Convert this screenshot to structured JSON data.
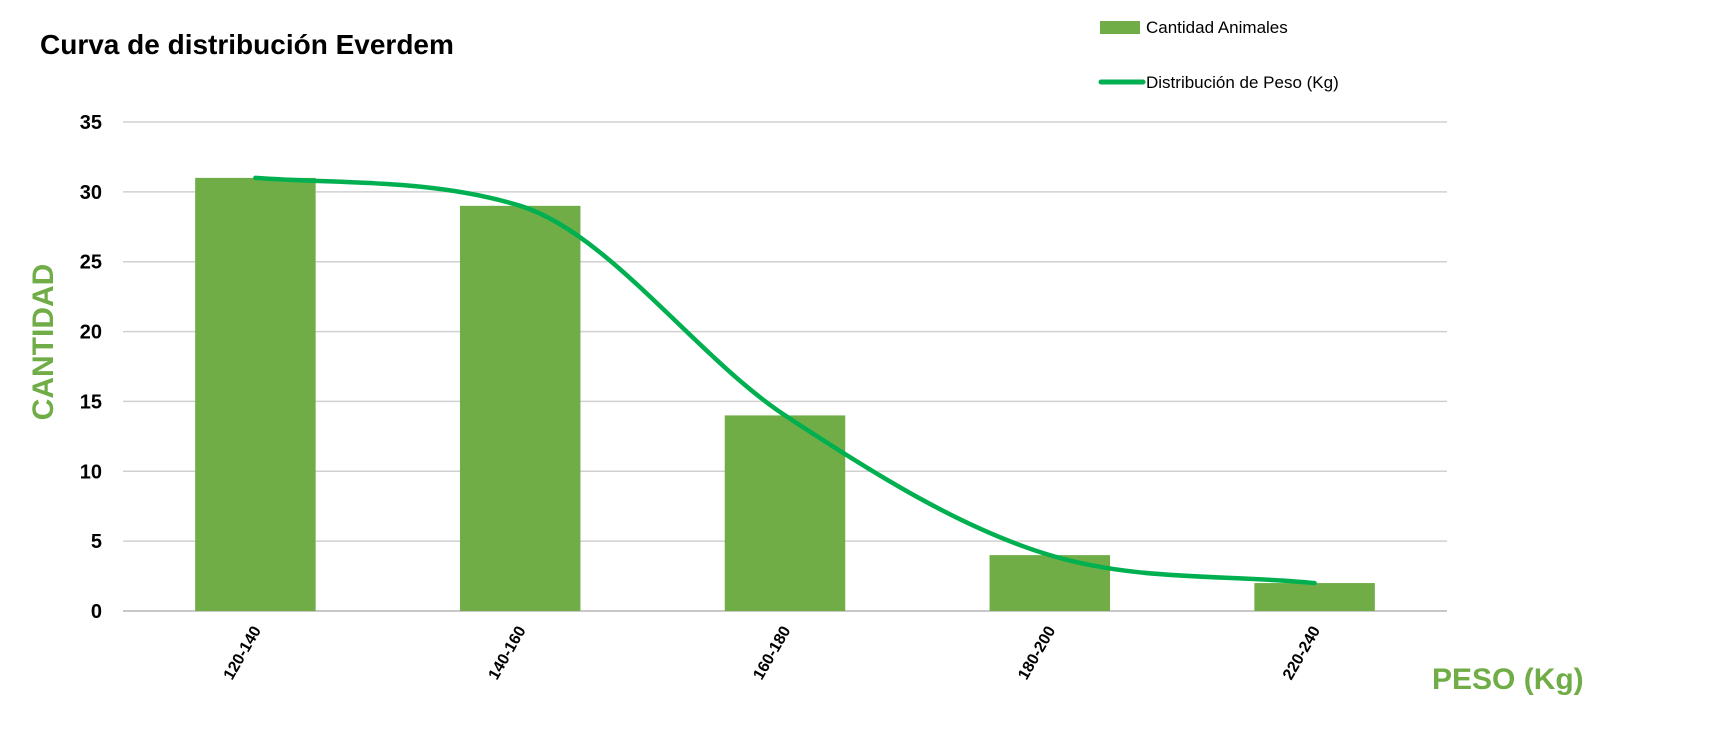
{
  "chart_data": {
    "type": "bar",
    "title": "Curva de distribución Everdem",
    "xlabel": "PESO (Kg)",
    "ylabel": "CANTIDAD",
    "categories": [
      "120-140",
      "140-160",
      "160-180",
      "180-200",
      "220-240"
    ],
    "series": [
      {
        "name": "Cantidad Animales",
        "type": "bar",
        "values": [
          31,
          29,
          14,
          4,
          2
        ],
        "color": "#70ad47"
      },
      {
        "name": "Distribución de Peso (Kg)",
        "type": "line",
        "smooth": true,
        "values": [
          31,
          29,
          14,
          4,
          2
        ],
        "color": "#00b050"
      }
    ],
    "ylim": [
      0,
      35
    ],
    "yticks": [
      0,
      5,
      10,
      15,
      20,
      25,
      30,
      35
    ],
    "grid": true,
    "legend_position": "top-right"
  },
  "colors": {
    "axis_title": "#70ad47",
    "bar": "#70ad47",
    "line": "#00b050"
  }
}
